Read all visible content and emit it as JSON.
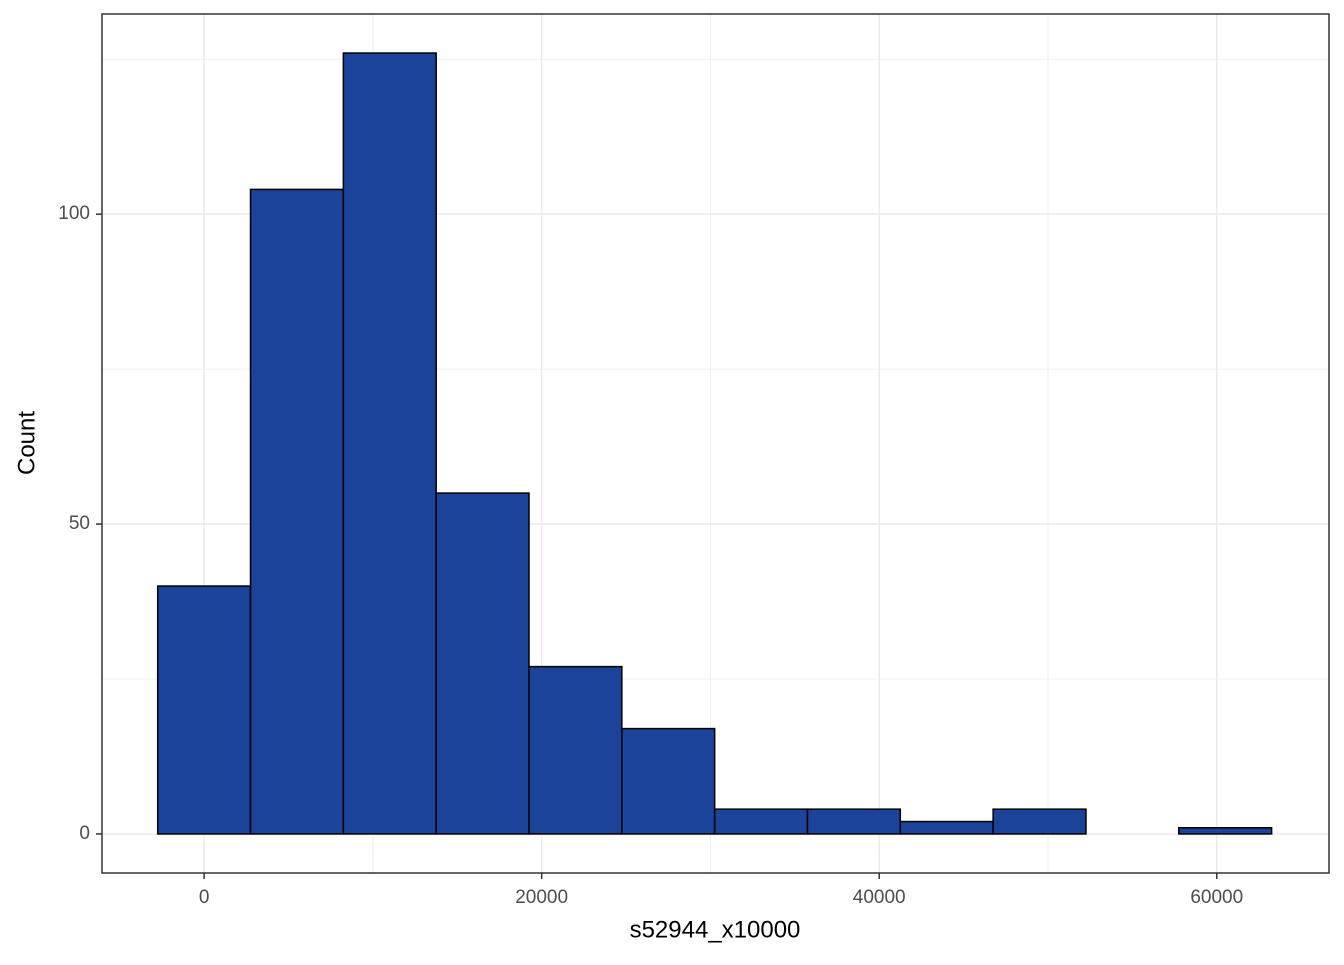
{
  "chart_data": {
    "type": "histogram",
    "x_label": "s52944_x10000",
    "y_label": "Count",
    "bins": [
      -2750,
      2750,
      8250,
      13750,
      19250,
      24750,
      30250,
      35750,
      41250,
      46750,
      52250,
      57750,
      63250
    ],
    "values": [
      40,
      104,
      126,
      55,
      27,
      17,
      4,
      4,
      2,
      4,
      0,
      1
    ],
    "color": "#1a4399",
    "xlim": [
      -6050,
      66650
    ],
    "ylim": [
      -6.3,
      132.3
    ],
    "xticks": [
      0,
      20000,
      40000,
      60000
    ],
    "yticks": [
      0,
      50,
      100
    ],
    "grid": true
  }
}
